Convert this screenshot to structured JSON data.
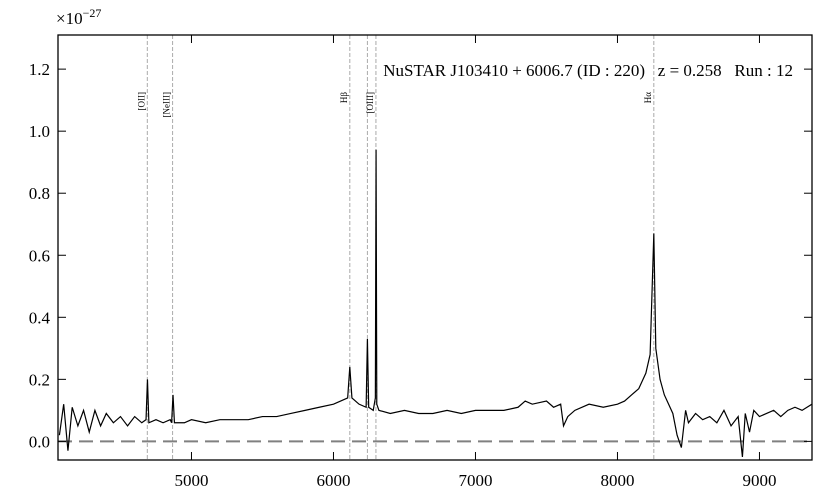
{
  "chart_data": {
    "type": "line",
    "annotation": "NuSTAR J103410 + 6006.7 (ID : 220)   z = 0.258   Run : 12",
    "multiplier": {
      "base": "×10",
      "exponent": "−27"
    },
    "x": [
      4070,
      4100,
      4130,
      4160,
      4200,
      4240,
      4280,
      4320,
      4360,
      4400,
      4450,
      4500,
      4550,
      4600,
      4650,
      4680,
      4690,
      4700,
      4750,
      4800,
      4850,
      4860,
      4870,
      4880,
      4950,
      5000,
      5100,
      5200,
      5300,
      5400,
      5500,
      5600,
      5700,
      5800,
      5900,
      6000,
      6050,
      6100,
      6115,
      6130,
      6180,
      6230,
      6239,
      6248,
      6280,
      6295,
      6300,
      6305,
      6320,
      6400,
      6500,
      6600,
      6700,
      6800,
      6900,
      7000,
      7100,
      7200,
      7300,
      7350,
      7400,
      7500,
      7550,
      7600,
      7620,
      7650,
      7700,
      7800,
      7900,
      8000,
      8050,
      8100,
      8150,
      8200,
      8230,
      8256,
      8270,
      8300,
      8330,
      8360,
      8390,
      8420,
      8450,
      8480,
      8500,
      8550,
      8600,
      8650,
      8700,
      8750,
      8800,
      8850,
      8880,
      8900,
      8930,
      8960,
      9000,
      9050,
      9100,
      9150,
      9200,
      9250,
      9300,
      9370
    ],
    "series": [
      {
        "color": "#000000",
        "values": [
          0.02,
          0.12,
          -0.03,
          0.11,
          0.05,
          0.1,
          0.03,
          0.1,
          0.05,
          0.09,
          0.06,
          0.08,
          0.05,
          0.08,
          0.06,
          0.07,
          0.2,
          0.06,
          0.07,
          0.06,
          0.07,
          0.06,
          0.15,
          0.06,
          0.06,
          0.07,
          0.06,
          0.07,
          0.07,
          0.07,
          0.08,
          0.08,
          0.09,
          0.1,
          0.11,
          0.12,
          0.13,
          0.14,
          0.24,
          0.14,
          0.12,
          0.11,
          0.33,
          0.11,
          0.1,
          0.14,
          0.94,
          0.12,
          0.1,
          0.09,
          0.1,
          0.09,
          0.09,
          0.1,
          0.09,
          0.1,
          0.1,
          0.1,
          0.11,
          0.13,
          0.12,
          0.13,
          0.11,
          0.12,
          0.05,
          0.08,
          0.1,
          0.12,
          0.11,
          0.12,
          0.13,
          0.15,
          0.17,
          0.22,
          0.28,
          0.67,
          0.3,
          0.2,
          0.15,
          0.12,
          0.09,
          0.02,
          -0.02,
          0.1,
          0.06,
          0.09,
          0.07,
          0.08,
          0.06,
          0.1,
          0.05,
          0.08,
          -0.05,
          0.09,
          0.03,
          0.1,
          0.08,
          0.09,
          0.1,
          0.08,
          0.1,
          0.11,
          0.1,
          0.12
        ]
      }
    ],
    "emission_lines": {
      "x": [
        4689,
        4867,
        6115,
        6239,
        6299,
        8256
      ],
      "labels": [
        "[OII]",
        "[NeIII]",
        "Hβ",
        null,
        "[OIII]",
        "Hα"
      ],
      "color": "#aaaaaa"
    },
    "reference_line": {
      "y": 0,
      "color": "#808080"
    },
    "xlim": [
      4060,
      9370
    ],
    "ylim": [
      -0.06,
      1.31
    ],
    "xticks": [
      5000,
      6000,
      7000,
      8000,
      9000
    ],
    "yticks": [
      {
        "value": 0,
        "label": "0.0"
      },
      0.2,
      0.4,
      0.6,
      0.8,
      {
        "value": 1,
        "label": "1.0"
      },
      1.2
    ]
  }
}
